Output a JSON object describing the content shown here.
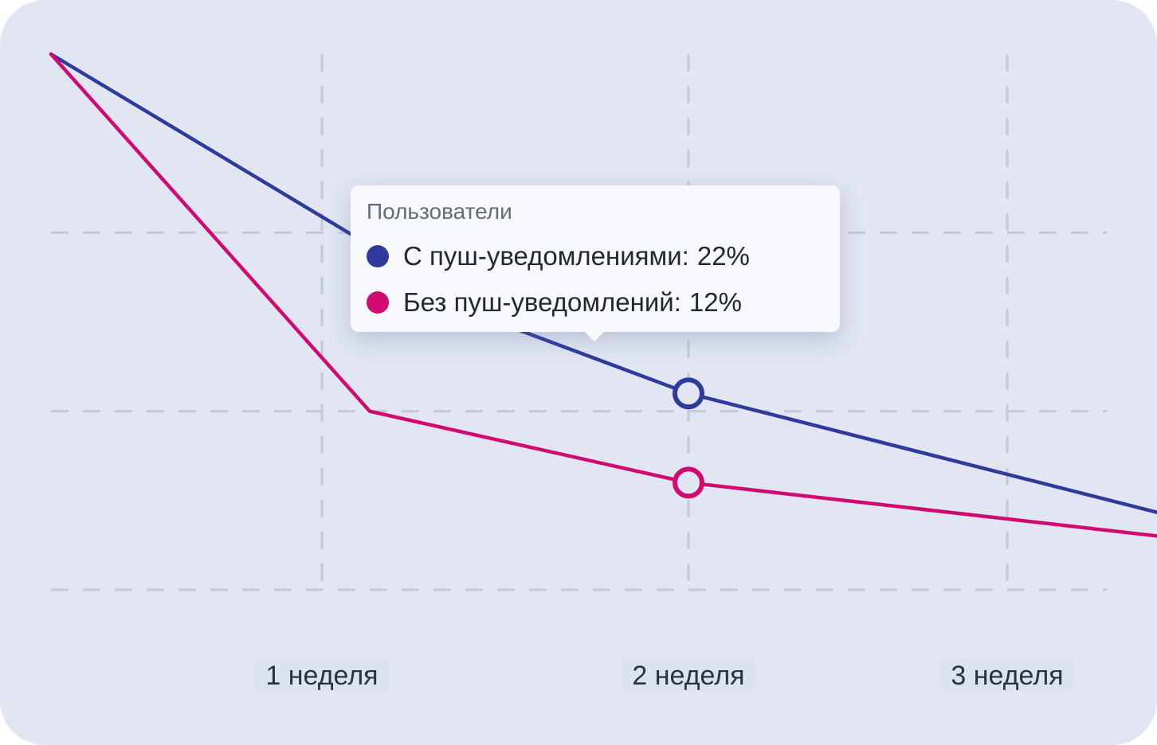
{
  "chart_data": {
    "type": "line",
    "title": "",
    "xlabel": "",
    "ylabel": "",
    "x": [
      0,
      1,
      2,
      3
    ],
    "categories": [
      "",
      "1 неделя",
      "2 неделя",
      "3 неделя"
    ],
    "ylim": [
      0,
      60
    ],
    "y_gridlines": [
      0,
      20,
      40
    ],
    "grid": true,
    "x_max": 3.6,
    "series": [
      {
        "name": "С пуш-уведомлениями",
        "color": "#2f3a9e",
        "x": [
          0,
          1.4,
          2,
          3.6
        ],
        "values": [
          60,
          30,
          22,
          7.5
        ]
      },
      {
        "name": "Без пуш-уведомлений",
        "color": "#d10a72",
        "x": [
          0,
          1,
          2,
          3.6
        ],
        "values": [
          60,
          20,
          12,
          5.5
        ]
      }
    ],
    "highlight_x": 2,
    "tooltip": {
      "title": "Пользователи",
      "rows": [
        {
          "label": "С пуш-уведомлениями:",
          "value": "22%",
          "color": "#2f3a9e"
        },
        {
          "label": "Без пуш-уведомлений:",
          "value": "12%",
          "color": "#d10a72"
        }
      ]
    }
  }
}
